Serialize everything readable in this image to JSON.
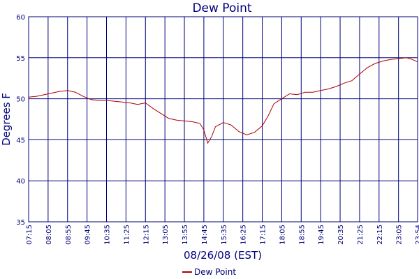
{
  "chart_data": {
    "type": "line",
    "title": "Dew Point",
    "xlabel": "08/26/08 (EST)",
    "ylabel": "Degrees F",
    "ylim": [
      35,
      60
    ],
    "y_ticks": [
      "35",
      "40",
      "45",
      "50",
      "55",
      "60"
    ],
    "x_ticks": [
      "07:15",
      "08:05",
      "08:55",
      "09:45",
      "10:35",
      "11:25",
      "12:15",
      "13:05",
      "13:55",
      "14:45",
      "15:35",
      "16:25",
      "17:15",
      "18:05",
      "18:55",
      "19:45",
      "20:35",
      "21:25",
      "22:15",
      "23:05",
      "23:54"
    ],
    "grid": true,
    "legend_position": "bottom",
    "colors": {
      "series": "#aa0000",
      "grid": "#00007a",
      "axis": "#00007a"
    },
    "series": [
      {
        "name": "Dew Point",
        "x": [
          "07:15",
          "07:35",
          "07:55",
          "08:15",
          "08:35",
          "08:55",
          "09:15",
          "09:35",
          "09:55",
          "10:15",
          "10:35",
          "10:55",
          "11:15",
          "11:35",
          "11:55",
          "12:15",
          "12:35",
          "12:55",
          "13:15",
          "13:35",
          "13:55",
          "14:15",
          "14:35",
          "14:45",
          "14:55",
          "15:05",
          "15:15",
          "15:35",
          "15:55",
          "16:15",
          "16:35",
          "16:55",
          "17:15",
          "17:30",
          "17:45",
          "18:05",
          "18:25",
          "18:45",
          "19:05",
          "19:25",
          "19:45",
          "20:05",
          "20:25",
          "20:45",
          "21:05",
          "21:25",
          "21:45",
          "22:05",
          "22:25",
          "22:45",
          "23:05",
          "23:25",
          "23:40",
          "23:54"
        ],
        "values": [
          50.2,
          50.3,
          50.5,
          50.7,
          50.9,
          51.0,
          50.8,
          50.3,
          49.9,
          49.8,
          49.8,
          49.7,
          49.6,
          49.5,
          49.3,
          49.5,
          48.8,
          48.2,
          47.6,
          47.4,
          47.3,
          47.2,
          47.0,
          46.2,
          44.6,
          45.4,
          46.6,
          47.1,
          46.8,
          46.0,
          45.6,
          45.9,
          46.7,
          47.9,
          49.4,
          50.0,
          50.6,
          50.5,
          50.8,
          50.8,
          51.0,
          51.2,
          51.5,
          51.9,
          52.2,
          53.0,
          53.8,
          54.3,
          54.6,
          54.8,
          54.9,
          55.0,
          54.8,
          54.5
        ]
      }
    ]
  }
}
